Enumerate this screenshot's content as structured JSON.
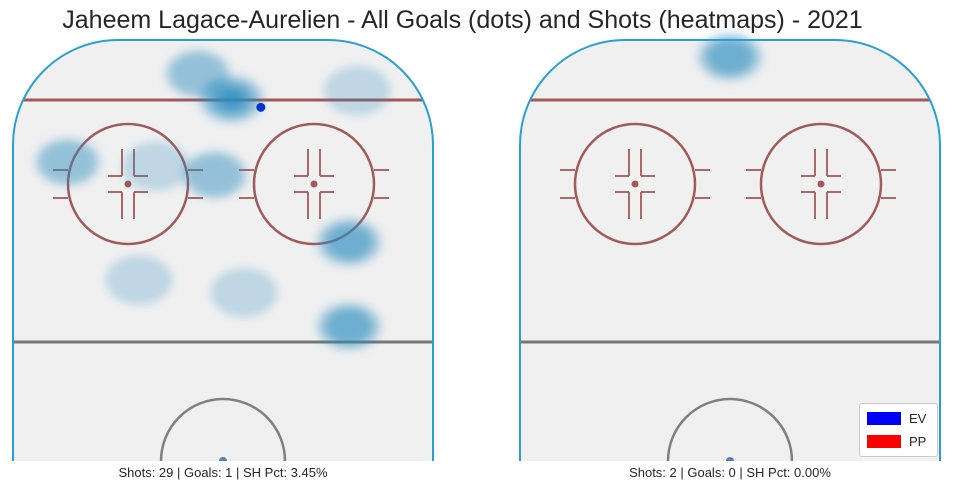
{
  "chart_data": {
    "type": "heatmap",
    "title": "Jaheem Lagace-Aurelien - All Goals (dots) and Shots (heatmaps) - 2021",
    "legend": {
      "placement": "bottom-right",
      "entries": [
        {
          "label": "EV",
          "color": "#0000ff"
        },
        {
          "label": "PP",
          "color": "#ff0000"
        }
      ]
    },
    "panels": [
      {
        "strength": "EV",
        "caption": "Shots: 29 | Goals: 1 | SH Pct: 3.45%",
        "shots": 29,
        "goals": 1,
        "sh_pct": "3.45%",
        "goal_points": [
          {
            "x": 0.59,
            "y": 0.84
          }
        ],
        "shot_density": [
          {
            "x": 0.52,
            "y": 0.86,
            "level": 5
          },
          {
            "x": 0.44,
            "y": 0.92,
            "level": 2
          },
          {
            "x": 0.82,
            "y": 0.88,
            "level": 1
          },
          {
            "x": 0.13,
            "y": 0.71,
            "level": 2
          },
          {
            "x": 0.34,
            "y": 0.7,
            "level": 1
          },
          {
            "x": 0.48,
            "y": 0.68,
            "level": 2
          },
          {
            "x": 0.8,
            "y": 0.52,
            "level": 3
          },
          {
            "x": 0.3,
            "y": 0.43,
            "level": 1
          },
          {
            "x": 0.55,
            "y": 0.4,
            "level": 1
          },
          {
            "x": 0.8,
            "y": 0.32,
            "level": 3
          }
        ]
      },
      {
        "strength": "PP",
        "caption": "Shots: 2 | Goals: 0 | SH Pct: 0.00%",
        "shots": 2,
        "goals": 0,
        "sh_pct": "0.00%",
        "goal_points": [],
        "shot_density": [
          {
            "x": 0.5,
            "y": 0.96,
            "level": 3
          }
        ]
      }
    ],
    "heatmap_color": "#2b8cbe",
    "grid": false
  }
}
